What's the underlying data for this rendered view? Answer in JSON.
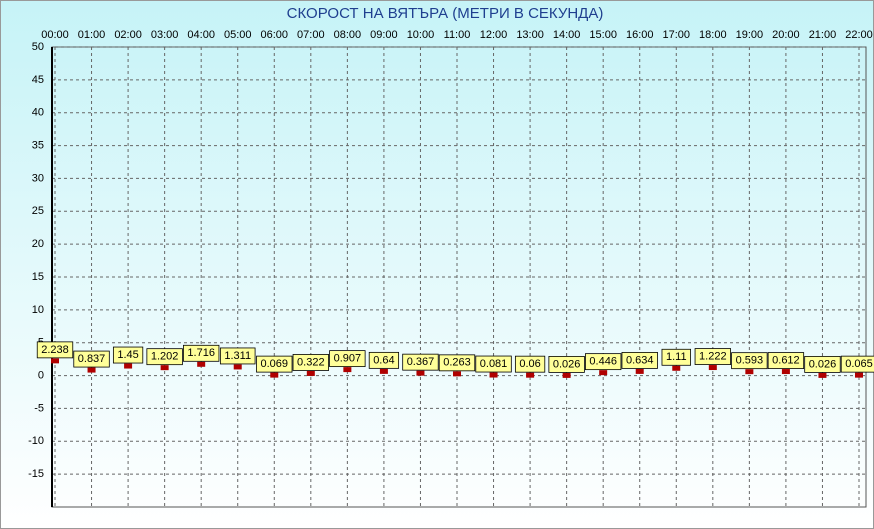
{
  "chart_data": {
    "type": "line",
    "title": "СКОРОСТ НА ВЯТЪРА (МЕТРИ В СЕКУНДА)",
    "categories": [
      "00:00",
      "01:00",
      "02:00",
      "03:00",
      "04:00",
      "05:00",
      "06:00",
      "07:00",
      "08:00",
      "09:00",
      "10:00",
      "11:00",
      "12:00",
      "13:00",
      "14:00",
      "15:00",
      "16:00",
      "17:00",
      "18:00",
      "19:00",
      "20:00",
      "21:00",
      "22:00"
    ],
    "values": [
      2.238,
      0.837,
      1.45,
      1.202,
      1.716,
      1.311,
      0.069,
      0.322,
      0.907,
      0.64,
      0.367,
      0.263,
      0.081,
      0.06,
      0.026,
      0.446,
      0.634,
      1.11,
      1.222,
      0.593,
      0.612,
      0.026,
      0.065
    ],
    "color": "#b00000",
    "ylim": [
      -20,
      50
    ],
    "yticks": [
      -15,
      -10,
      -5,
      0,
      5,
      10,
      15,
      20,
      25,
      30,
      35,
      40,
      45,
      50
    ],
    "grid": true
  }
}
